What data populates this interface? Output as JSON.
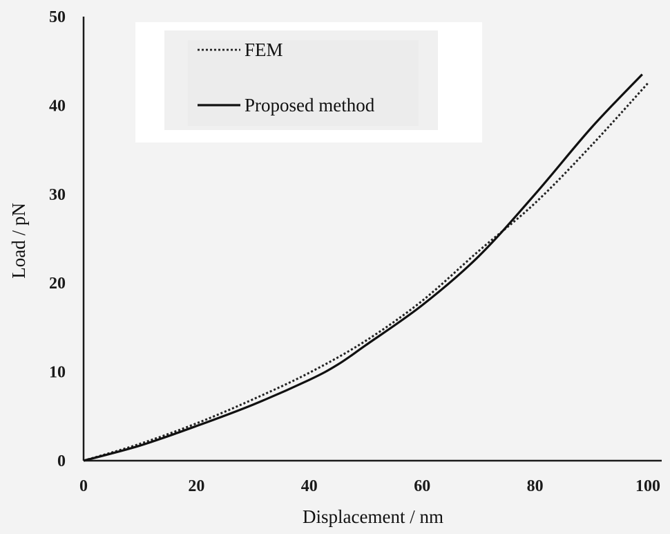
{
  "chart_data": {
    "type": "line",
    "title": "",
    "xlabel": "Displacement / nm",
    "ylabel": "Load / pN",
    "xlim": [
      0,
      100
    ],
    "ylim": [
      0,
      50
    ],
    "xticks": [
      0,
      20,
      40,
      60,
      80,
      100
    ],
    "yticks": [
      0,
      10,
      20,
      30,
      40,
      50
    ],
    "grid": false,
    "legend_position": "top-left",
    "series": [
      {
        "name": "FEM",
        "style": "dotted",
        "color": "#222222",
        "x": [
          0,
          10,
          20,
          30,
          40,
          50,
          60,
          70,
          80,
          90,
          100
        ],
        "y": [
          0,
          1.9,
          4.2,
          6.9,
          9.9,
          13.5,
          18.0,
          23.6,
          29.0,
          35.5,
          42.5
        ]
      },
      {
        "name": "Proposed method",
        "style": "solid",
        "color": "#111111",
        "x": [
          0,
          10,
          20,
          30,
          40,
          45,
          50,
          60,
          70,
          80,
          90,
          99
        ],
        "y": [
          0,
          1.7,
          3.9,
          6.3,
          9.1,
          10.8,
          13.0,
          17.5,
          23.0,
          30.0,
          37.5,
          43.5
        ]
      }
    ]
  }
}
